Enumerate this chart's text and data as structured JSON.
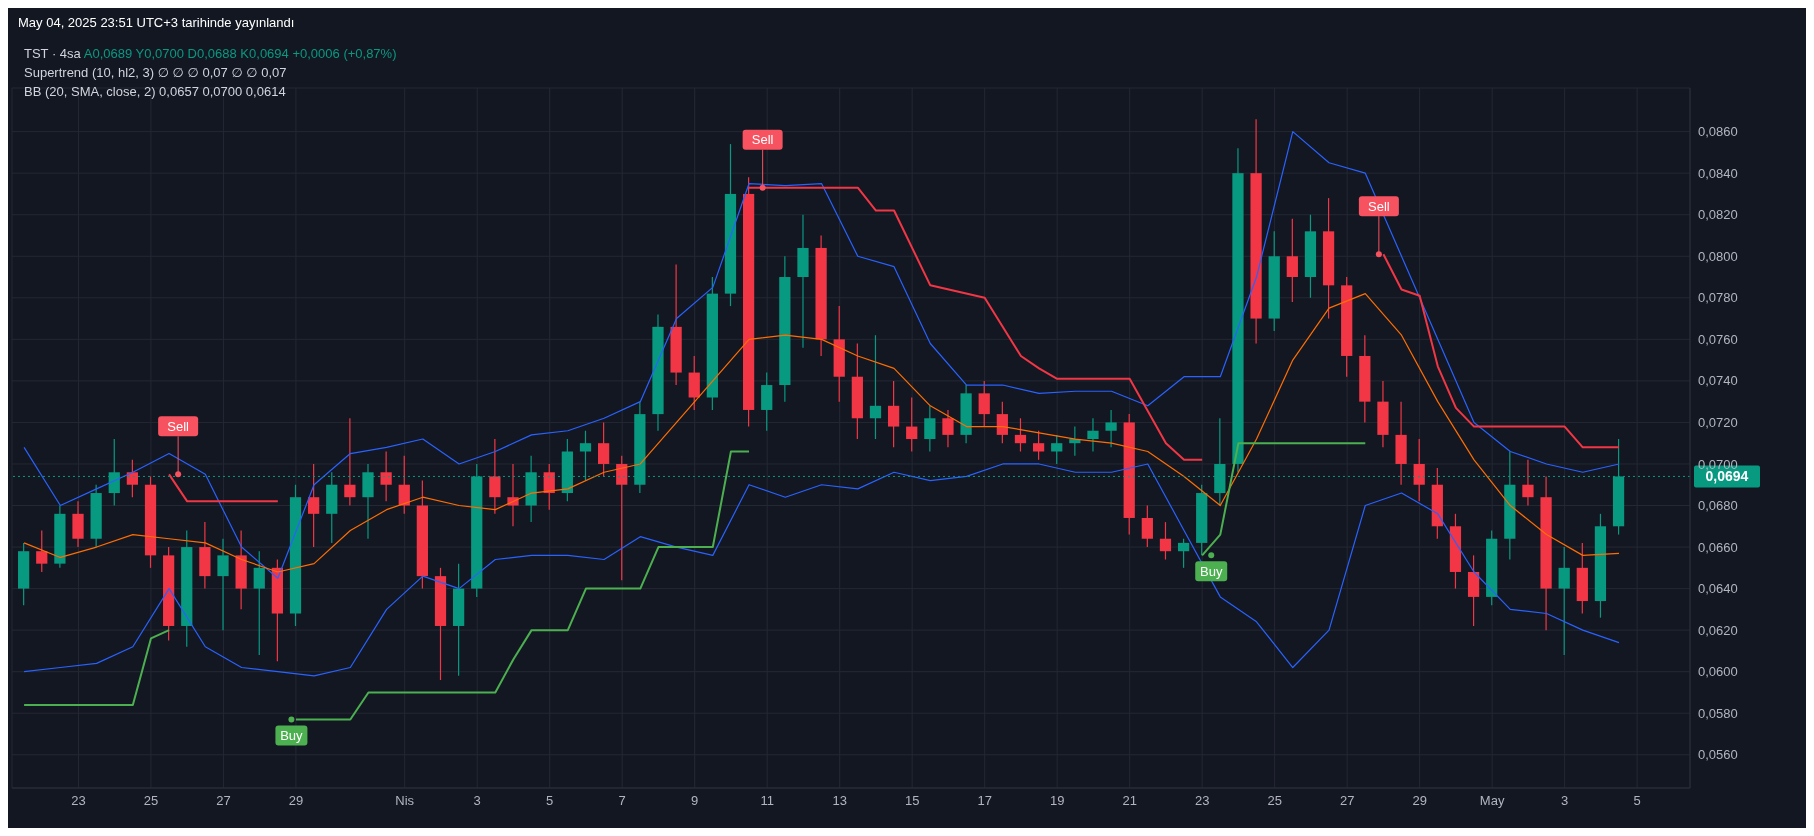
{
  "chart_data": {
    "type": "candlestick",
    "title": "TST · 4sa",
    "subtitle": "A0,0689 Y0,0700 D0,0688 K0,0694 +0,0006 (+0,87%)",
    "annotations": [
      "May 04, 2025 23:51 UTC+3 tarihinde yayınlandı",
      "Supertrend (10, hl2, 3) ∅ ∅ ∅ 0,07 ∅ ∅ 0,07",
      "BB (20, SMA, close, 2) 0,0657 0,0700 0,0614",
      {
        "text": "Sell",
        "x": "2025-03-25T18:00",
        "y": 0.0695
      },
      {
        "text": "Buy",
        "x": "2025-03-28T21:00",
        "y": 0.0577
      },
      {
        "text": "Sell",
        "x": "2025-04-10T21:00",
        "y": 0.0833
      },
      {
        "text": "Buy",
        "x": "2025-04-23T06:00",
        "y": 0.0656
      },
      {
        "text": "Sell",
        "x": "2025-04-27T21:00",
        "y": 0.0801
      }
    ],
    "x": [
      "2025-03-21T12:00",
      "2025-03-22T00:00",
      "2025-03-22T12:00",
      "2025-03-23T00:00",
      "2025-03-23T12:00",
      "2025-03-24T00:00",
      "2025-03-24T12:00",
      "2025-03-25T00:00",
      "2025-03-25T12:00",
      "2025-03-26T00:00",
      "2025-03-26T12:00",
      "2025-03-27T00:00",
      "2025-03-27T12:00",
      "2025-03-28T00:00",
      "2025-03-28T12:00",
      "2025-03-29T00:00",
      "2025-03-29T12:00",
      "2025-03-30T00:00",
      "2025-03-30T12:00",
      "2025-03-31T00:00",
      "2025-03-31T12:00",
      "2025-04-01T00:00",
      "2025-04-01T12:00",
      "2025-04-02T00:00",
      "2025-04-02T12:00",
      "2025-04-03T00:00",
      "2025-04-03T12:00",
      "2025-04-04T00:00",
      "2025-04-04T12:00",
      "2025-04-05T00:00",
      "2025-04-05T12:00",
      "2025-04-06T00:00",
      "2025-04-06T12:00",
      "2025-04-07T00:00",
      "2025-04-07T12:00",
      "2025-04-08T00:00",
      "2025-04-08T12:00",
      "2025-04-09T00:00",
      "2025-04-09T12:00",
      "2025-04-10T00:00",
      "2025-04-10T12:00",
      "2025-04-11T00:00",
      "2025-04-11T12:00",
      "2025-04-12T00:00",
      "2025-04-12T12:00",
      "2025-04-13T00:00",
      "2025-04-13T12:00",
      "2025-04-14T00:00",
      "2025-04-14T12:00",
      "2025-04-15T00:00",
      "2025-04-15T12:00",
      "2025-04-16T00:00",
      "2025-04-16T12:00",
      "2025-04-17T00:00",
      "2025-04-17T12:00",
      "2025-04-18T00:00",
      "2025-04-18T12:00",
      "2025-04-19T00:00",
      "2025-04-19T12:00",
      "2025-04-20T00:00",
      "2025-04-20T12:00",
      "2025-04-21T00:00",
      "2025-04-21T12:00",
      "2025-04-22T00:00",
      "2025-04-22T12:00",
      "2025-04-23T00:00",
      "2025-04-23T12:00",
      "2025-04-24T00:00",
      "2025-04-24T12:00",
      "2025-04-25T00:00",
      "2025-04-25T12:00",
      "2025-04-26T00:00",
      "2025-04-26T12:00",
      "2025-04-27T00:00",
      "2025-04-27T12:00",
      "2025-04-28T00:00",
      "2025-04-28T12:00",
      "2025-04-29T00:00",
      "2025-04-29T12:00",
      "2025-04-30T00:00",
      "2025-04-30T12:00",
      "2025-05-01T00:00",
      "2025-05-01T12:00",
      "2025-05-02T00:00",
      "2025-05-02T12:00",
      "2025-05-03T00:00",
      "2025-05-03T12:00",
      "2025-05-04T00:00",
      "2025-05-04T12:00"
    ],
    "ohlc": [
      [
        0.064,
        0.0662,
        0.0632,
        0.0658
      ],
      [
        0.0658,
        0.0668,
        0.0648,
        0.0652
      ],
      [
        0.0652,
        0.068,
        0.065,
        0.0676
      ],
      [
        0.0676,
        0.0682,
        0.066,
        0.0664
      ],
      [
        0.0664,
        0.069,
        0.066,
        0.0686
      ],
      [
        0.0686,
        0.0712,
        0.068,
        0.0696
      ],
      [
        0.0696,
        0.0702,
        0.0684,
        0.069
      ],
      [
        0.069,
        0.0694,
        0.065,
        0.0656
      ],
      [
        0.0656,
        0.066,
        0.0615,
        0.0622
      ],
      [
        0.0622,
        0.0668,
        0.0612,
        0.066
      ],
      [
        0.066,
        0.0672,
        0.064,
        0.0646
      ],
      [
        0.0646,
        0.0664,
        0.062,
        0.0656
      ],
      [
        0.0656,
        0.0668,
        0.063,
        0.064
      ],
      [
        0.064,
        0.0658,
        0.0608,
        0.065
      ],
      [
        0.065,
        0.0654,
        0.0605,
        0.0628
      ],
      [
        0.0628,
        0.069,
        0.0622,
        0.0684
      ],
      [
        0.0684,
        0.07,
        0.066,
        0.0676
      ],
      [
        0.0676,
        0.0696,
        0.0662,
        0.069
      ],
      [
        0.069,
        0.0722,
        0.068,
        0.0684
      ],
      [
        0.0684,
        0.07,
        0.0664,
        0.0696
      ],
      [
        0.0696,
        0.0706,
        0.0682,
        0.069
      ],
      [
        0.069,
        0.0704,
        0.0676,
        0.068
      ],
      [
        0.068,
        0.0692,
        0.064,
        0.0646
      ],
      [
        0.0646,
        0.065,
        0.0596,
        0.0622
      ],
      [
        0.0622,
        0.0652,
        0.0598,
        0.064
      ],
      [
        0.064,
        0.07,
        0.0636,
        0.0694
      ],
      [
        0.0694,
        0.0712,
        0.0676,
        0.0684
      ],
      [
        0.0684,
        0.07,
        0.067,
        0.068
      ],
      [
        0.068,
        0.0704,
        0.0672,
        0.0696
      ],
      [
        0.0696,
        0.07,
        0.0678,
        0.0686
      ],
      [
        0.0686,
        0.0712,
        0.0682,
        0.0706
      ],
      [
        0.0706,
        0.0716,
        0.0692,
        0.071
      ],
      [
        0.071,
        0.072,
        0.0694,
        0.07
      ],
      [
        0.07,
        0.0704,
        0.0644,
        0.069
      ],
      [
        0.069,
        0.073,
        0.0686,
        0.0724
      ],
      [
        0.0724,
        0.0772,
        0.0716,
        0.0766
      ],
      [
        0.0766,
        0.0796,
        0.0738,
        0.0744
      ],
      [
        0.0744,
        0.0752,
        0.0726,
        0.0732
      ],
      [
        0.0732,
        0.079,
        0.0726,
        0.0782
      ],
      [
        0.0782,
        0.0854,
        0.0776,
        0.083
      ],
      [
        0.083,
        0.0838,
        0.0718,
        0.0726
      ],
      [
        0.0726,
        0.0744,
        0.0716,
        0.0738
      ],
      [
        0.0738,
        0.08,
        0.073,
        0.079
      ],
      [
        0.079,
        0.082,
        0.0756,
        0.0804
      ],
      [
        0.0804,
        0.081,
        0.0752,
        0.076
      ],
      [
        0.076,
        0.0776,
        0.073,
        0.0742
      ],
      [
        0.0742,
        0.0758,
        0.0712,
        0.0722
      ],
      [
        0.0722,
        0.0762,
        0.0712,
        0.0728
      ],
      [
        0.0728,
        0.074,
        0.0708,
        0.0718
      ],
      [
        0.0718,
        0.0732,
        0.0706,
        0.0712
      ],
      [
        0.0712,
        0.0728,
        0.0706,
        0.0722
      ],
      [
        0.0722,
        0.0726,
        0.0708,
        0.0714
      ],
      [
        0.0714,
        0.0738,
        0.071,
        0.0734
      ],
      [
        0.0734,
        0.074,
        0.0718,
        0.0724
      ],
      [
        0.0724,
        0.073,
        0.071,
        0.0714
      ],
      [
        0.0714,
        0.0722,
        0.0706,
        0.071
      ],
      [
        0.071,
        0.0716,
        0.0702,
        0.0706
      ],
      [
        0.0706,
        0.0714,
        0.07,
        0.071
      ],
      [
        0.071,
        0.0718,
        0.0704,
        0.0712
      ],
      [
        0.0712,
        0.0722,
        0.0706,
        0.0716
      ],
      [
        0.0716,
        0.0726,
        0.0708,
        0.072
      ],
      [
        0.072,
        0.0724,
        0.0666,
        0.0674
      ],
      [
        0.0674,
        0.068,
        0.066,
        0.0664
      ],
      [
        0.0664,
        0.0672,
        0.0654,
        0.0658
      ],
      [
        0.0658,
        0.0664,
        0.065,
        0.0662
      ],
      [
        0.0662,
        0.069,
        0.0656,
        0.0686
      ],
      [
        0.0686,
        0.0722,
        0.068,
        0.07
      ],
      [
        0.07,
        0.0852,
        0.0696,
        0.084
      ],
      [
        0.084,
        0.0866,
        0.0758,
        0.077
      ],
      [
        0.077,
        0.0812,
        0.0764,
        0.08
      ],
      [
        0.08,
        0.0818,
        0.0778,
        0.079
      ],
      [
        0.079,
        0.082,
        0.078,
        0.0812
      ],
      [
        0.0812,
        0.0828,
        0.077,
        0.0786
      ],
      [
        0.0786,
        0.079,
        0.0742,
        0.0752
      ],
      [
        0.0752,
        0.0762,
        0.072,
        0.073
      ],
      [
        0.073,
        0.074,
        0.0708,
        0.0714
      ],
      [
        0.0714,
        0.073,
        0.069,
        0.07
      ],
      [
        0.07,
        0.0712,
        0.0682,
        0.069
      ],
      [
        0.069,
        0.0698,
        0.0664,
        0.067
      ],
      [
        0.067,
        0.0676,
        0.064,
        0.0648
      ],
      [
        0.0648,
        0.0656,
        0.0622,
        0.0636
      ],
      [
        0.0636,
        0.0668,
        0.0632,
        0.0664
      ],
      [
        0.0664,
        0.0706,
        0.0654,
        0.069
      ],
      [
        0.069,
        0.0702,
        0.068,
        0.0684
      ],
      [
        0.0684,
        0.0694,
        0.062,
        0.064
      ],
      [
        0.064,
        0.066,
        0.0608,
        0.065
      ],
      [
        0.065,
        0.0662,
        0.0628,
        0.0634
      ],
      [
        0.0634,
        0.0676,
        0.0626,
        0.067
      ],
      [
        0.067,
        0.0712,
        0.0666,
        0.0694
      ]
    ],
    "colors": [
      "#089981",
      "#f23645",
      "#089981",
      "#f23645",
      "#089981",
      "#089981",
      "#f23645",
      "#f23645",
      "#f23645",
      "#089981",
      "#f23645",
      "#089981",
      "#f23645",
      "#089981",
      "#f23645",
      "#089981",
      "#f23645",
      "#089981",
      "#f23645",
      "#089981",
      "#f23645",
      "#f23645",
      "#f23645",
      "#f23645",
      "#089981",
      "#089981",
      "#f23645",
      "#f23645",
      "#089981",
      "#f23645",
      "#089981",
      "#089981",
      "#f23645",
      "#f23645",
      "#089981",
      "#089981",
      "#f23645",
      "#f23645",
      "#089981",
      "#089981",
      "#f23645",
      "#089981",
      "#089981",
      "#089981",
      "#f23645",
      "#f23645",
      "#f23645",
      "#089981",
      "#f23645",
      "#f23645",
      "#089981",
      "#f23645",
      "#089981",
      "#f23645",
      "#f23645",
      "#f23645",
      "#f23645",
      "#089981",
      "#089981",
      "#089981",
      "#089981",
      "#f23645",
      "#f23645",
      "#f23645",
      "#089981",
      "#089981",
      "#089981",
      "#089981",
      "#f23645",
      "#089981",
      "#f23645",
      "#089981",
      "#f23645",
      "#f23645",
      "#f23645",
      "#f23645",
      "#f23645",
      "#f23645",
      "#f23645",
      "#f23645",
      "#f23645",
      "#089981",
      "#089981",
      "#f23645",
      "#f23645",
      "#089981",
      "#f23645",
      "#089981",
      "#089981"
    ],
    "series": [
      {
        "type": "line",
        "color": "#2962ff",
        "x": [
          "2025-03-21T12:00",
          "2025-03-22T12:00",
          "2025-03-23T12:00",
          "2025-03-24T12:00",
          "2025-03-25T12:00",
          "2025-03-26T12:00",
          "2025-03-27T12:00",
          "2025-03-28T12:00",
          "2025-03-29T12:00",
          "2025-03-30T12:00",
          "2025-03-31T12:00",
          "2025-04-01T12:00",
          "2025-04-02T12:00",
          "2025-04-03T12:00",
          "2025-04-04T12:00",
          "2025-04-05T12:00",
          "2025-04-06T12:00",
          "2025-04-07T12:00",
          "2025-04-08T12:00",
          "2025-04-09T12:00",
          "2025-04-10T12:00",
          "2025-04-11T12:00",
          "2025-04-12T12:00",
          "2025-04-13T12:00",
          "2025-04-14T12:00",
          "2025-04-15T12:00",
          "2025-04-16T12:00",
          "2025-04-17T12:00",
          "2025-04-18T12:00",
          "2025-04-19T12:00",
          "2025-04-20T12:00",
          "2025-04-21T12:00",
          "2025-04-22T12:00",
          "2025-04-23T12:00",
          "2025-04-24T12:00",
          "2025-04-25T12:00",
          "2025-04-26T12:00",
          "2025-04-27T12:00",
          "2025-04-28T12:00",
          "2025-04-29T12:00",
          "2025-04-30T12:00",
          "2025-05-01T12:00",
          "2025-05-02T12:00",
          "2025-05-03T12:00",
          "2025-05-04T12:00"
        ],
        "values": [
          0.0708,
          0.068,
          0.0688,
          0.0696,
          0.0705,
          0.0695,
          0.066,
          0.0645,
          0.069,
          0.0705,
          0.0708,
          0.0712,
          0.07,
          0.0706,
          0.0714,
          0.0716,
          0.0722,
          0.073,
          0.077,
          0.0785,
          0.0835,
          0.0834,
          0.0835,
          0.08,
          0.0795,
          0.0758,
          0.0738,
          0.0738,
          0.0734,
          0.0735,
          0.0735,
          0.0728,
          0.0742,
          0.0742,
          0.079,
          0.086,
          0.0845,
          0.084,
          0.08,
          0.076,
          0.072,
          0.0706,
          0.07,
          0.0696,
          0.07
        ]
      },
      {
        "type": "line",
        "color": "#ff6d00",
        "x": [
          "2025-03-21T12:00",
          "2025-03-22T12:00",
          "2025-03-23T12:00",
          "2025-03-24T12:00",
          "2025-03-25T12:00",
          "2025-03-26T12:00",
          "2025-03-27T12:00",
          "2025-03-28T12:00",
          "2025-03-29T12:00",
          "2025-03-30T12:00",
          "2025-03-31T12:00",
          "2025-04-01T12:00",
          "2025-04-02T12:00",
          "2025-04-03T12:00",
          "2025-04-04T12:00",
          "2025-04-05T12:00",
          "2025-04-06T12:00",
          "2025-04-07T12:00",
          "2025-04-08T12:00",
          "2025-04-09T12:00",
          "2025-04-10T12:00",
          "2025-04-11T12:00",
          "2025-04-12T12:00",
          "2025-04-13T12:00",
          "2025-04-14T12:00",
          "2025-04-15T12:00",
          "2025-04-16T12:00",
          "2025-04-17T12:00",
          "2025-04-18T12:00",
          "2025-04-19T12:00",
          "2025-04-20T12:00",
          "2025-04-21T12:00",
          "2025-04-22T12:00",
          "2025-04-23T12:00",
          "2025-04-24T12:00",
          "2025-04-25T12:00",
          "2025-04-26T12:00",
          "2025-04-27T12:00",
          "2025-04-28T12:00",
          "2025-04-29T12:00",
          "2025-04-30T12:00",
          "2025-05-01T12:00",
          "2025-05-02T12:00",
          "2025-05-03T12:00",
          "2025-05-04T12:00"
        ],
        "values": [
          0.0662,
          0.0655,
          0.066,
          0.0666,
          0.0664,
          0.0662,
          0.0654,
          0.0648,
          0.0652,
          0.0668,
          0.0678,
          0.0684,
          0.068,
          0.0678,
          0.0686,
          0.0688,
          0.0696,
          0.07,
          0.072,
          0.074,
          0.076,
          0.0762,
          0.076,
          0.0752,
          0.0746,
          0.0728,
          0.0718,
          0.0718,
          0.0715,
          0.0712,
          0.071,
          0.0706,
          0.0694,
          0.068,
          0.0712,
          0.075,
          0.0775,
          0.0782,
          0.0762,
          0.073,
          0.0702,
          0.068,
          0.0666,
          0.0656,
          0.0657
        ]
      },
      {
        "type": "line",
        "color": "#2962ff",
        "x": [
          "2025-03-21T12:00",
          "2025-03-22T12:00",
          "2025-03-23T12:00",
          "2025-03-24T12:00",
          "2025-03-25T12:00",
          "2025-03-26T12:00",
          "2025-03-27T12:00",
          "2025-03-28T12:00",
          "2025-03-29T12:00",
          "2025-03-30T12:00",
          "2025-03-31T12:00",
          "2025-04-01T12:00",
          "2025-04-02T12:00",
          "2025-04-03T12:00",
          "2025-04-04T12:00",
          "2025-04-05T12:00",
          "2025-04-06T12:00",
          "2025-04-07T12:00",
          "2025-04-08T12:00",
          "2025-04-09T12:00",
          "2025-04-10T12:00",
          "2025-04-11T12:00",
          "2025-04-12T12:00",
          "2025-04-13T12:00",
          "2025-04-14T12:00",
          "2025-04-15T12:00",
          "2025-04-16T12:00",
          "2025-04-17T12:00",
          "2025-04-18T12:00",
          "2025-04-19T12:00",
          "2025-04-20T12:00",
          "2025-04-21T12:00",
          "2025-04-22T12:00",
          "2025-04-23T12:00",
          "2025-04-24T12:00",
          "2025-04-25T12:00",
          "2025-04-26T12:00",
          "2025-04-27T12:00",
          "2025-04-28T12:00",
          "2025-04-29T12:00",
          "2025-04-30T12:00",
          "2025-05-01T12:00",
          "2025-05-02T12:00",
          "2025-05-03T12:00",
          "2025-05-04T12:00"
        ],
        "values": [
          0.06,
          0.0602,
          0.0604,
          0.0612,
          0.064,
          0.0612,
          0.0602,
          0.06,
          0.0598,
          0.0602,
          0.063,
          0.0646,
          0.064,
          0.0654,
          0.0656,
          0.0656,
          0.0654,
          0.0665,
          0.066,
          0.0656,
          0.069,
          0.0684,
          0.069,
          0.0688,
          0.0696,
          0.0692,
          0.0694,
          0.07,
          0.07,
          0.0696,
          0.0696,
          0.07,
          0.0668,
          0.0636,
          0.0624,
          0.0602,
          0.062,
          0.068,
          0.0686,
          0.0676,
          0.0648,
          0.063,
          0.0628,
          0.062,
          0.0614
        ]
      },
      {
        "type": "line",
        "color": "#4caf50",
        "x": [
          "2025-03-21T12:00",
          "2025-03-24T12:00",
          "2025-03-25T00:00",
          "2025-03-25T12:00"
        ],
        "values": [
          0.0584,
          0.0584,
          0.0616,
          0.062
        ]
      },
      {
        "type": "line",
        "color": "#f23645",
        "x": [
          "2025-03-25T12:00",
          "2025-03-26T00:00",
          "2025-03-28T12:00"
        ],
        "values": [
          0.0695,
          0.0682,
          0.0682
        ]
      },
      {
        "type": "line",
        "color": "#4caf50",
        "x": [
          "2025-03-29T00:00",
          "2025-03-30T12:00",
          "2025-03-31T00:00",
          "2025-04-03T12:00",
          "2025-04-04T00:00",
          "2025-04-04T12:00",
          "2025-04-05T12:00",
          "2025-04-06T00:00",
          "2025-04-07T12:00",
          "2025-04-08T00:00",
          "2025-04-09T12:00",
          "2025-04-10T00:00",
          "2025-04-10T12:00"
        ],
        "values": [
          0.0577,
          0.0577,
          0.059,
          0.059,
          0.0606,
          0.062,
          0.062,
          0.064,
          0.064,
          0.066,
          0.066,
          0.0706,
          0.0706
        ]
      },
      {
        "type": "line",
        "color": "#f23645",
        "x": [
          "2025-04-10T12:00",
          "2025-04-13T12:00",
          "2025-04-14T00:00",
          "2025-04-14T12:00",
          "2025-04-15T12:00",
          "2025-04-17T00:00",
          "2025-04-18T00:00",
          "2025-04-18T12:00",
          "2025-04-19T00:00",
          "2025-04-21T00:00",
          "2025-04-22T00:00",
          "2025-04-22T12:00",
          "2025-04-23T00:00"
        ],
        "values": [
          0.0833,
          0.0833,
          0.0822,
          0.0822,
          0.0786,
          0.078,
          0.0752,
          0.0746,
          0.0741,
          0.0741,
          0.071,
          0.0702,
          0.0702
        ]
      },
      {
        "type": "line",
        "color": "#4caf50",
        "x": [
          "2025-04-23T00:00",
          "2025-04-23T12:00",
          "2025-04-24T00:00",
          "2025-04-27T12:00"
        ],
        "values": [
          0.0656,
          0.0666,
          0.071,
          0.071
        ]
      },
      {
        "type": "line",
        "color": "#f23645",
        "x": [
          "2025-04-28T00:00",
          "2025-04-28T12:00",
          "2025-04-29T00:00",
          "2025-04-29T12:00",
          "2025-04-30T00:00",
          "2025-04-30T12:00",
          "2025-05-03T00:00",
          "2025-05-03T12:00",
          "2025-05-04T12:00"
        ],
        "values": [
          0.0801,
          0.0784,
          0.0781,
          0.0747,
          0.0727,
          0.0718,
          0.0718,
          0.0708,
          0.0708
        ]
      }
    ],
    "xlim": [
      "2025-03-21T04:00",
      "2025-05-06T11:00"
    ],
    "xticks": [
      {
        "value": "2025-03-23",
        "label": "23"
      },
      {
        "value": "2025-03-25",
        "label": "25"
      },
      {
        "value": "2025-03-27",
        "label": "27"
      },
      {
        "value": "2025-03-29",
        "label": "29"
      },
      {
        "value": "2025-04-01",
        "label": "Nis"
      },
      {
        "value": "2025-04-03",
        "label": "3"
      },
      {
        "value": "2025-04-05",
        "label": "5"
      },
      {
        "value": "2025-04-07",
        "label": "7"
      },
      {
        "value": "2025-04-09",
        "label": "9"
      },
      {
        "value": "2025-04-11",
        "label": "11"
      },
      {
        "value": "2025-04-13",
        "label": "13"
      },
      {
        "value": "2025-04-15",
        "label": "15"
      },
      {
        "value": "2025-04-17",
        "label": "17"
      },
      {
        "value": "2025-04-19",
        "label": "19"
      },
      {
        "value": "2025-04-21",
        "label": "21"
      },
      {
        "value": "2025-04-23",
        "label": "23"
      },
      {
        "value": "2025-04-25",
        "label": "25"
      },
      {
        "value": "2025-04-27",
        "label": "27"
      },
      {
        "value": "2025-04-29",
        "label": "29"
      },
      {
        "value": "2025-05-01",
        "label": "May"
      },
      {
        "value": "2025-05-03",
        "label": "3"
      },
      {
        "value": "2025-05-05",
        "label": "5"
      }
    ],
    "ylim": [
      0.0544,
      0.0881
    ],
    "yticks": [
      {
        "value": 0.056,
        "label": "0,0560"
      },
      {
        "value": 0.058,
        "label": "0,0580"
      },
      {
        "value": 0.06,
        "label": "0,0600"
      },
      {
        "value": 0.062,
        "label": "0,0620"
      },
      {
        "value": 0.064,
        "label": "0,0640"
      },
      {
        "value": 0.066,
        "label": "0,0660"
      },
      {
        "value": 0.068,
        "label": "0,0680"
      },
      {
        "value": 0.07,
        "label": "0,0700"
      },
      {
        "value": 0.072,
        "label": "0,0720"
      },
      {
        "value": 0.074,
        "label": "0,0740"
      },
      {
        "value": 0.076,
        "label": "0,0760"
      },
      {
        "value": 0.078,
        "label": "0,0780"
      },
      {
        "value": 0.08,
        "label": "0,0800"
      },
      {
        "value": 0.082,
        "label": "0,0820"
      },
      {
        "value": 0.084,
        "label": "0,0840"
      },
      {
        "value": 0.086,
        "label": "0,0860"
      }
    ],
    "grid": true,
    "ref_lines": [
      {
        "axis": "y",
        "value": 0.0694,
        "label": "0,0694",
        "color": "#089981",
        "line_style": "dotted"
      }
    ]
  }
}
